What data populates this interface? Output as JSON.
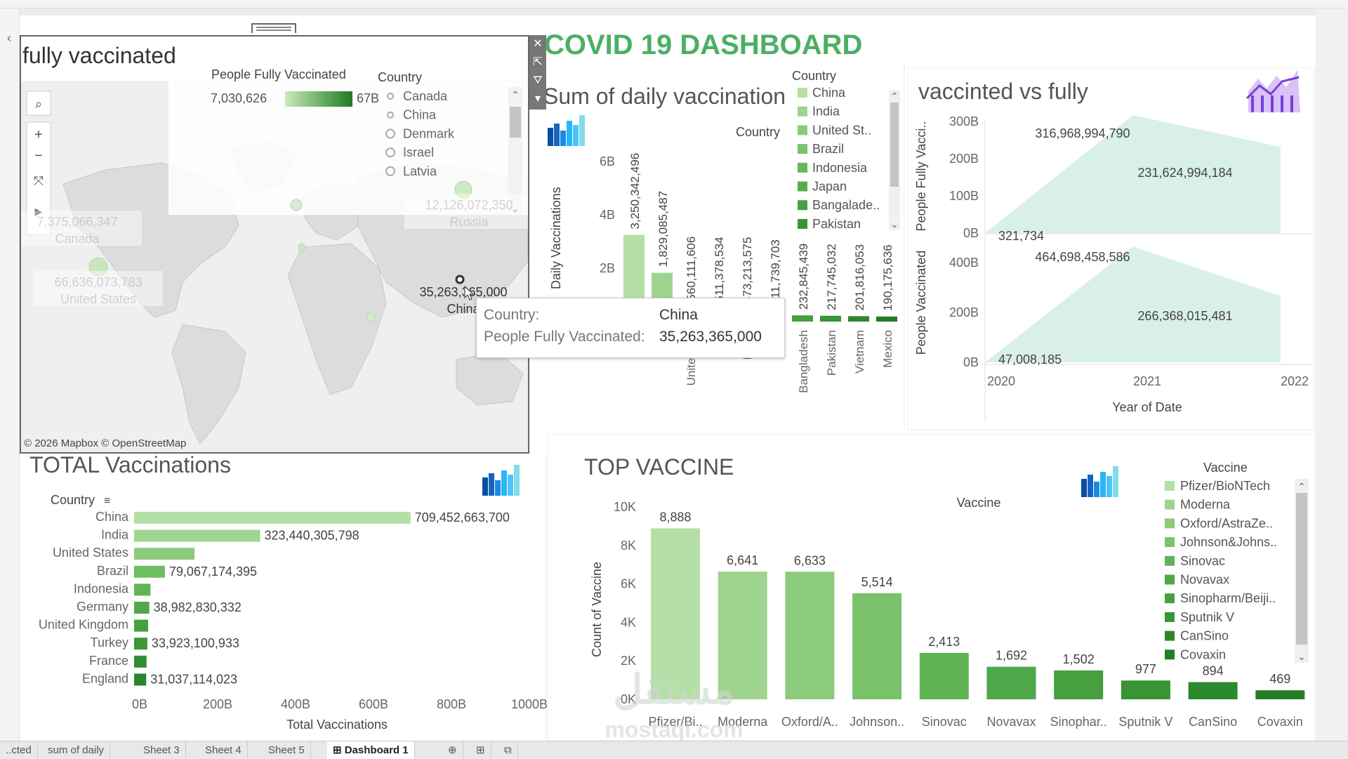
{
  "dashboard_title": "COVID 19 DASHBOARD",
  "map_panel": {
    "title": "fully vaccinated",
    "legend_title": "People Fully Vaccinated",
    "legend_min": "7,030,626",
    "legend_max": "67B",
    "country_legend_title": "Country",
    "country_legend": [
      "Canada",
      "China",
      "Denmark",
      "Israel",
      "Latvia"
    ],
    "labels": [
      {
        "value": "7,375,066,347",
        "country": "Canada"
      },
      {
        "value": "12,126,072,350",
        "country": "Russia"
      },
      {
        "value": "66,636,073,783",
        "country": "United States"
      },
      {
        "value": "35,263,365,000",
        "country": "China"
      }
    ],
    "attribution": "© 2026 Mapbox © OpenStreetMap",
    "toolbar_icons": [
      "close-icon",
      "popout-icon",
      "filter-icon",
      "more-icon"
    ],
    "map_tools": [
      "search-icon",
      "zoom-in-icon",
      "zoom-out-icon",
      "pan-reset-icon",
      "play-icon"
    ]
  },
  "tooltip": {
    "country_key": "Country:",
    "country_value": "China",
    "people_key": "People Fully Vaccinated:",
    "people_value": "35,263,365,000"
  },
  "daily_panel": {
    "title": "Sum of daily vaccination",
    "legend_title": "Country",
    "axis_header": "Country",
    "legend": [
      "China",
      "India",
      "United St..",
      "Brazil",
      "Indonesia",
      "Japan",
      "Bangalade..",
      "Pakistan"
    ],
    "chart_data": {
      "type": "bar",
      "ylabel": "Daily Vaccinations",
      "yticks": [
        "6B",
        "4B",
        "2B"
      ],
      "ylim": [
        0,
        7000000000
      ],
      "categories": [
        "China",
        "India",
        "United States",
        "Brazil",
        "Indonesia",
        "Japan",
        "Bangladesh",
        "Pakistan",
        "Vietnam",
        "Mexico"
      ],
      "category_labels": [
        "C..",
        "I..",
        "United St..",
        "B..",
        "Indo..",
        "Ja..",
        "Bangladesh",
        "Pakistan",
        "Vietnam",
        "Mexico"
      ],
      "values": [
        3250342496,
        1829085487,
        560111606,
        511378534,
        473213575,
        411739703,
        232845439,
        217745032,
        201816053,
        190175636
      ],
      "value_labels": [
        "3,250,342,496",
        "1,829,085,487",
        "560,111,606",
        "511,378,534",
        "473,213,575",
        "411,739,703",
        "232,845,439",
        "217,745,032",
        "201,816,053",
        "190,175,636"
      ],
      "colors": [
        "#b5dfa6",
        "#9fd48f",
        "#8ccb7c",
        "#7ac26a",
        "#68b85b",
        "#57ad4d",
        "#46a040",
        "#389435",
        "#2c882c",
        "#237d25"
      ]
    }
  },
  "vs_panel": {
    "title": "vaccinted vs fully",
    "chart_data": {
      "type": "area",
      "xlabel": "Year of Date",
      "xticks": [
        "2020",
        "2021",
        "2022"
      ],
      "x": [
        2020.0,
        2021.0,
        2022.0
      ],
      "panels": [
        {
          "ylabel": "People Fully Vacci..",
          "yticks": [
            "300B",
            "200B",
            "100B",
            "0B"
          ],
          "ylim": [
            0,
            330000000000
          ],
          "values": [
            321734,
            316968994790,
            231624994184
          ],
          "value_labels": [
            "321,734",
            "316,968,994,790",
            "231,624,994,184"
          ]
        },
        {
          "ylabel": "People Vaccinated",
          "yticks": [
            "400B",
            "200B",
            "0B"
          ],
          "ylim": [
            0,
            480000000000
          ],
          "values": [
            47008185,
            464698458586,
            266368015481
          ],
          "value_labels": [
            "47,008,185",
            "464,698,458,586",
            "266,368,015,481"
          ]
        }
      ],
      "color": "#d8f0e6"
    }
  },
  "total_panel": {
    "title": "TOTAL Vaccinations",
    "header": "Country",
    "chart_data": {
      "type": "bar",
      "orientation": "horizontal",
      "xlabel": "Total Vaccinations",
      "xticks": [
        "0B",
        "200B",
        "400B",
        "600B",
        "800B",
        "1000B"
      ],
      "xlim": [
        0,
        1000000000000
      ],
      "categories": [
        "China",
        "India",
        "United States",
        "Brazil",
        "Indonesia",
        "Germany",
        "United Kingdom",
        "Turkey",
        "France",
        "England"
      ],
      "values": [
        709452663700,
        323440305798,
        155000000000,
        79067174395,
        42000000000,
        38982830332,
        36000000000,
        33923100933,
        32000000000,
        31037114023
      ],
      "value_labels": [
        "709,452,663,700",
        "323,440,305,798",
        "",
        "79,067,174,395",
        "",
        "38,982,830,332",
        "",
        "33,923,100,933",
        "",
        "31,037,114,023"
      ],
      "colors": [
        "#b5dfa6",
        "#9fd48f",
        "#8ccb7c",
        "#6fbd63",
        "#5fb456",
        "#4fa84a",
        "#44a041",
        "#3a9638",
        "#318d31",
        "#2a852a"
      ]
    }
  },
  "vaccine_panel": {
    "title": "TOP VACCINE",
    "legend_title": "Vaccine",
    "axis_header": "Vaccine",
    "legend": [
      "Pfizer/BioNTech",
      "Moderna",
      "Oxford/AstraZe..",
      "Johnson&Johns..",
      "Sinovac",
      "Novavax",
      "Sinopharm/Beiji..",
      "Sputnik V",
      "CanSino",
      "Covaxin"
    ],
    "chart_data": {
      "type": "bar",
      "ylabel": "Count of Vaccine",
      "yticks": [
        "10K",
        "8K",
        "6K",
        "4K",
        "2K",
        "0K"
      ],
      "ylim": [
        0,
        10000
      ],
      "categories": [
        "Pfizer/Bi..",
        "Moderna",
        "Oxford/A..",
        "Johnson..",
        "Sinovac",
        "Novavax",
        "Sinophar..",
        "Sputnik V",
        "CanSino",
        "Covaxin"
      ],
      "values": [
        8888,
        6641,
        6633,
        5514,
        2413,
        1692,
        1502,
        977,
        894,
        469
      ],
      "value_labels": [
        "8,888",
        "6,641",
        "6,633",
        "5,514",
        "2,413",
        "1,692",
        "1,502",
        "977",
        "894",
        "469"
      ],
      "colors": [
        "#b5dfa6",
        "#9fd48f",
        "#8ccb7c",
        "#7ac26a",
        "#5fb456",
        "#4fa84a",
        "#46a040",
        "#389435",
        "#2c882c",
        "#237d25"
      ]
    }
  },
  "watermark": {
    "arabic": "مستقل",
    "latin": "mostaql.com"
  },
  "tabs": [
    "..cted",
    "sum of daily",
    "Sheet 3",
    "Sheet 4",
    "Sheet 5",
    "Dashboard 1"
  ],
  "active_tab": "Dashboard 1"
}
